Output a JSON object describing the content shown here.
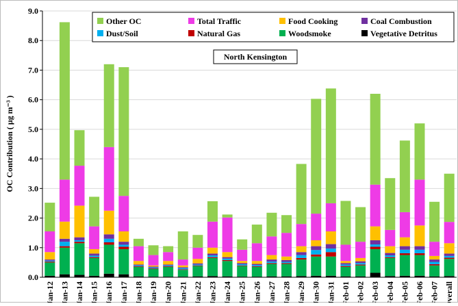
{
  "chart_data": {
    "type": "stacked_bar",
    "annotation": "North Kensington",
    "y_label": "OC Contribution ( µg m⁻³ )",
    "categories": [
      "Jan-12",
      "Jan-13",
      "Jan-14",
      "Jan-15",
      "Jan-16",
      "Jan-17",
      "Jan-18",
      "Jan-19",
      "Jan-20",
      "Jan-21",
      "Jan-22",
      "Jan-23",
      "Jan-24",
      "Jan-25",
      "Jan-26",
      "Jan-27",
      "Jan-28",
      "Jan-29",
      "Jan-30",
      "Jan-31",
      "Feb-01",
      "Feb-02",
      "Feb-03",
      "Feb-04",
      "Feb-05",
      "Feb-06",
      "Feb-07",
      "Overall"
    ],
    "series": [
      {
        "name": "Other OC",
        "color": "#92d050",
        "values": [
          0.97,
          5.32,
          1.2,
          1.0,
          2.8,
          4.35,
          0.25,
          0.33,
          0.2,
          0.95,
          0.43,
          0.69,
          0.1,
          0.35,
          0.63,
          0.8,
          0.6,
          2.03,
          3.88,
          3.88,
          1.48,
          1.17,
          3.07,
          1.75,
          2.42,
          1.9,
          1.35,
          1.63
        ]
      },
      {
        "name": "Total Traffic",
        "color": "#ee3be6",
        "values": [
          0.7,
          1.42,
          1.35,
          0.77,
          2.15,
          1.2,
          0.5,
          0.35,
          0.3,
          0.2,
          0.38,
          0.88,
          1.17,
          0.38,
          0.6,
          0.63,
          0.8,
          0.75,
          0.9,
          0.95,
          0.55,
          0.55,
          1.41,
          0.55,
          0.85,
          1.55,
          0.48,
          0.72
        ]
      },
      {
        "name": "Food Cooking",
        "color": "#ffc000",
        "values": [
          0.25,
          0.58,
          1.07,
          0.15,
          0.8,
          0.35,
          0.12,
          0.04,
          0.12,
          0.06,
          0.15,
          0.2,
          0.17,
          0.07,
          0.1,
          0.15,
          0.12,
          0.2,
          0.2,
          0.43,
          0.07,
          0.11,
          0.47,
          0.23,
          0.3,
          0.7,
          0.12,
          0.35
        ]
      },
      {
        "name": "Coal Combustion",
        "color": "#7030a0",
        "values": [
          0.04,
          0.1,
          0.1,
          0.07,
          0.15,
          0.1,
          0.03,
          0.03,
          0.03,
          0.03,
          0.04,
          0.06,
          0.05,
          0.04,
          0.04,
          0.07,
          0.06,
          0.1,
          0.13,
          0.15,
          0.05,
          0.06,
          0.14,
          0.08,
          0.12,
          0.12,
          0.08,
          0.08
        ]
      },
      {
        "name": "Dust/Soil",
        "color": "#00b0f0",
        "values": [
          0.03,
          0.15,
          0.05,
          0.05,
          0.12,
          0.07,
          0.03,
          0.03,
          0.03,
          0.04,
          0.03,
          0.06,
          0.05,
          0.04,
          0.04,
          0.05,
          0.04,
          0.1,
          0.15,
          0.12,
          0.05,
          0.05,
          0.08,
          0.06,
          0.12,
          0.12,
          0.08,
          0.06
        ]
      },
      {
        "name": "Natural Gas",
        "color": "#c00000",
        "values": [
          0.03,
          0.05,
          0.05,
          0.03,
          0.08,
          0.08,
          0.02,
          0.02,
          0.02,
          0.02,
          0.02,
          0.03,
          0.03,
          0.02,
          0.02,
          0.03,
          0.03,
          0.05,
          0.07,
          0.15,
          0.03,
          0.03,
          0.08,
          0.03,
          0.06,
          0.06,
          0.04,
          0.04
        ]
      },
      {
        "name": "Woodsmoke",
        "color": "#00b050",
        "values": [
          0.45,
          0.9,
          1.07,
          0.6,
          0.98,
          0.85,
          0.32,
          0.26,
          0.33,
          0.23,
          0.35,
          0.61,
          0.52,
          0.36,
          0.33,
          0.42,
          0.42,
          0.56,
          0.65,
          0.65,
          0.32,
          0.37,
          0.8,
          0.61,
          0.7,
          0.7,
          0.37,
          0.58
        ]
      },
      {
        "name": "Vegetative Detritus",
        "color": "#000000",
        "values": [
          0.05,
          0.1,
          0.08,
          0.05,
          0.12,
          0.1,
          0.03,
          0.02,
          0.02,
          0.02,
          0.03,
          0.04,
          0.03,
          0.02,
          0.02,
          0.03,
          0.03,
          0.04,
          0.05,
          0.05,
          0.03,
          0.03,
          0.15,
          0.04,
          0.05,
          0.05,
          0.03,
          0.04
        ]
      }
    ],
    "ylim": [
      0,
      9
    ],
    "yticks": [
      {
        "value": 0,
        "label": "0.0"
      },
      {
        "value": 1,
        "label": "1.0"
      },
      {
        "value": 2,
        "label": "2.0"
      },
      {
        "value": 3,
        "label": "3.0"
      },
      {
        "value": 4,
        "label": "4.0"
      },
      {
        "value": 5,
        "label": "5.0"
      },
      {
        "value": 6,
        "label": "6.0"
      },
      {
        "value": 7,
        "label": "7.0"
      },
      {
        "value": 8,
        "label": "8.0"
      },
      {
        "value": 9,
        "label": "9.0"
      }
    ],
    "grid": true
  }
}
